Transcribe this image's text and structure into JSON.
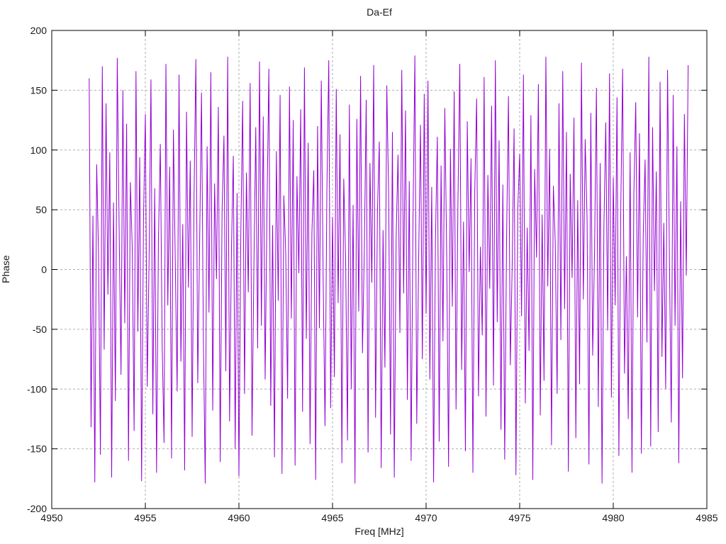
{
  "window": {
    "background": "#ffffff"
  },
  "chart_data": {
    "type": "line",
    "title": "Da-Ef",
    "xlabel": "Freq [MHz]",
    "ylabel": "Phase",
    "xlim": [
      4950,
      4985
    ],
    "ylim": [
      -200,
      200
    ],
    "xticks": [
      4950,
      4955,
      4960,
      4965,
      4970,
      4975,
      4980,
      4985
    ],
    "yticks": [
      -200,
      -150,
      -100,
      -50,
      0,
      50,
      100,
      150,
      200
    ],
    "grid": true,
    "legend": "none",
    "line_color": "#9400d3",
    "grid_color": "#aeaeae",
    "axis_color": "#000000",
    "x_start": 4952.0,
    "x_step": 0.1,
    "phase_values": [
      160,
      -132,
      45,
      -178,
      88,
      12,
      -155,
      170,
      -67,
      139,
      -21,
      98,
      -174,
      56,
      -110,
      177,
      34,
      -88,
      150,
      -45,
      122,
      -160,
      73,
      18,
      -135,
      166,
      -52,
      94,
      -177,
      41,
      130,
      -98,
      8,
      159,
      -121,
      68,
      -170,
      25,
      105,
      -63,
      -145,
      172,
      -30,
      86,
      -158,
      117,
      5,
      -102,
      163,
      -77,
      38,
      -168,
      132,
      -15,
      91,
      -140,
      59,
      176,
      -95,
      22,
      148,
      -57,
      -179,
      103,
      -36,
      165,
      -118,
      72,
      -8,
      136,
      -161,
      49,
      112,
      -85,
      178,
      -127,
      16,
      95,
      -150,
      64,
      -173,
      29,
      141,
      -104,
      81,
      -19,
      156,
      -139,
      3,
      119,
      -66,
      174,
      -47,
      128,
      -92,
      52,
      168,
      -114,
      37,
      -157,
      99,
      -26,
      146,
      -171,
      62,
      14,
      -108,
      153,
      -41,
      125,
      -164,
      78,
      -3,
      134,
      -119,
      169,
      -58,
      106,
      -146,
      31,
      83,
      -176,
      120,
      -49,
      158,
      -7,
      -131,
      67,
      175,
      -116,
      44,
      -90,
      151,
      -28,
      113,
      -162,
      76,
      9,
      -143,
      138,
      -100,
      54,
      -179,
      126,
      -35,
      162,
      -70,
      17,
      142,
      -153,
      89,
      -11,
      171,
      -124,
      48,
      107,
      -166,
      33,
      -82,
      154,
      61,
      -138,
      115,
      -174,
      27,
      96,
      -53,
      167,
      -20,
      133,
      -109,
      74,
      -160,
      42,
      179,
      -129,
      6,
      121,
      -75,
      147,
      -37,
      158,
      -92,
      69,
      -178,
      24,
      111,
      -144,
      87,
      -60,
      135,
      13,
      -165,
      101,
      -31,
      149,
      -117,
      55,
      172,
      -84,
      40,
      -152,
      124,
      -2,
      93,
      -170,
      65,
      143,
      -106,
      19,
      -55,
      161,
      -123,
      79,
      -16,
      137,
      -97,
      175,
      -44,
      108,
      -134,
      71,
      -159,
      26,
      145,
      -80,
      4,
      118,
      -172,
      51,
      97,
      -39,
      163,
      -112,
      35,
      -68,
      129,
      -176,
      84,
      10,
      155,
      -122,
      46,
      -93,
      178,
      -14,
      101,
      -147,
      70,
      23,
      -104,
      139,
      -59,
      166,
      -33,
      115,
      -169,
      80,
      -7,
      127,
      -141,
      58,
      -96,
      173,
      -25,
      109,
      43,
      -163,
      131,
      -72,
      15,
      152,
      -115,
      89,
      -179,
      36,
      123,
      -51,
      164,
      -107,
      77,
      -30,
      144,
      -156,
      50,
      168,
      -87,
      11,
      -125,
      98,
      -170,
      63,
      140,
      -40,
      114,
      -154,
      28,
      92,
      -61,
      178,
      -148,
      119,
      -18,
      82,
      -136,
      157,
      -73,
      39,
      -100,
      167,
      9,
      -128,
      146,
      -47,
      103,
      -162,
      57,
      -91,
      130,
      -5,
      171
    ]
  }
}
